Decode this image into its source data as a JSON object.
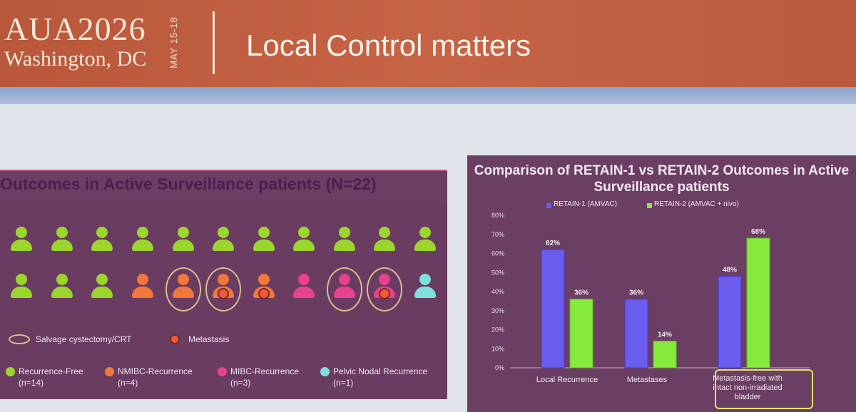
{
  "header": {
    "logo_main": "AUA2026",
    "logo_sub": "Washington, DC",
    "logo_date": "MAY 15-18",
    "title": "Local Control matters"
  },
  "left": {
    "title": "Outcomes in Active Surveillance patients (N=22)",
    "row1": [
      "green",
      "green",
      "green",
      "green",
      "green",
      "green",
      "green",
      "green",
      "green",
      "green",
      "green"
    ],
    "row2": [
      {
        "color": "green",
        "ring": false,
        "dot": false
      },
      {
        "color": "green",
        "ring": false,
        "dot": false
      },
      {
        "color": "green",
        "ring": false,
        "dot": false
      },
      {
        "color": "orange",
        "ring": false,
        "dot": false
      },
      {
        "color": "orange",
        "ring": true,
        "dot": false
      },
      {
        "color": "orange",
        "ring": true,
        "dot": true
      },
      {
        "color": "orange",
        "ring": false,
        "dot": true
      },
      {
        "color": "pink",
        "ring": false,
        "dot": false
      },
      {
        "color": "pink",
        "ring": true,
        "dot": false
      },
      {
        "color": "pink",
        "ring": true,
        "dot": true
      },
      {
        "color": "cyan",
        "ring": false,
        "dot": false
      }
    ],
    "colors": {
      "green": "#9bd62c",
      "orange": "#f2773a",
      "pink": "#e8428c",
      "cyan": "#7fe0de",
      "red": "#f05a3a"
    },
    "legend_salvage": "Salvage cystectomy/CRT",
    "legend_metastasis": "Metastasis",
    "legend_items": [
      {
        "label": "Recurrence-Free",
        "count": "(n=14)",
        "color": "#9bd62c"
      },
      {
        "label": "NMIBC-Recurrence",
        "count": "(n=4)",
        "color": "#f2773a"
      },
      {
        "label": "MIBC-Recurrence",
        "count": "(n=3)",
        "color": "#e8428c"
      },
      {
        "label": "Pelvic Nodal Recurrence",
        "count": "(n=1)",
        "color": "#7fe0de"
      }
    ]
  },
  "chart_data": {
    "type": "bar",
    "title": "Comparison of RETAIN-1 vs RETAIN-2 Outcomes in Active Surveillance patients",
    "categories": [
      "Local Recurrence",
      "Metastases",
      "Metastasis-free with intact non-irradiated bladder"
    ],
    "series": [
      {
        "name": "RETAIN-1 (AMVAC)",
        "color": "#6b5cf0",
        "values": [
          62,
          36,
          48
        ]
      },
      {
        "name": "RETAIN-2 (AMVAC + nivo)",
        "color": "#86ea3c",
        "values": [
          36,
          14,
          68
        ]
      }
    ],
    "data_labels": [
      [
        "62%",
        "36%",
        "48%"
      ],
      [
        "36%",
        "14%",
        "68%"
      ]
    ],
    "yticks": [
      "0%",
      "10%",
      "20%",
      "30%",
      "40%",
      "50%",
      "60%",
      "70%",
      "80%"
    ],
    "ylim": [
      0,
      80
    ],
    "grid": false,
    "legend": "top"
  }
}
